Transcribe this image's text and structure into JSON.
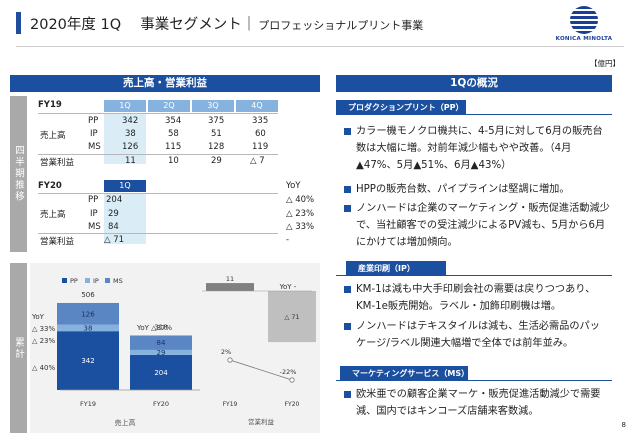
{
  "header": {
    "title": "2020年度 1Q　 事業セグメント｜",
    "subtitle": "プロフェッショナルプリント事業",
    "logo_text": "KONICA MINOLTA",
    "unit": "【億円】",
    "page_number": "8"
  },
  "left_panel": {
    "title": "売上高・営業利益",
    "vlabel_top": "四半期推移",
    "vlabel_bottom": "累計",
    "fy19": {
      "label": "FY19",
      "quarters": [
        "1Q",
        "2Q",
        "3Q",
        "4Q"
      ],
      "sales_label": "売上高",
      "rows": [
        {
          "seg": "PP",
          "values": [
            "342",
            "354",
            "375",
            "335"
          ]
        },
        {
          "seg": "IP",
          "values": [
            "38",
            "58",
            "51",
            "60"
          ]
        },
        {
          "seg": "MS",
          "values": [
            "126",
            "115",
            "128",
            "119"
          ]
        }
      ],
      "op_label": "営業利益",
      "op_values": [
        "11",
        "10",
        "29",
        "△ 7"
      ]
    },
    "fy20": {
      "label": "FY20",
      "quarter": "1Q",
      "yoy_label": "YoY",
      "sales_label": "売上高",
      "rows": [
        {
          "seg": "PP",
          "value": "204",
          "yoy": "△ 40%"
        },
        {
          "seg": "IP",
          "value": "29",
          "yoy": "△ 23%"
        },
        {
          "seg": "MS",
          "value": "84",
          "yoy": "△ 33%"
        }
      ],
      "op_label": "営業利益",
      "op_value": "△ 71",
      "op_yoy": "-"
    }
  },
  "chart_data": [
    {
      "type": "bar",
      "stacked": true,
      "categories": [
        "FY19",
        "FY20"
      ],
      "series": [
        {
          "name": "PP",
          "values": [
            342,
            204
          ],
          "color": "#1b4fa0"
        },
        {
          "name": "IP",
          "values": [
            38,
            29
          ],
          "color": "#86b2df"
        },
        {
          "name": "MS",
          "values": [
            126,
            84
          ],
          "color": "#5a86c4"
        }
      ],
      "totals": [
        506,
        318
      ],
      "xlabel": "売上高",
      "legend": "top",
      "yoy_fy19_label": "YoY",
      "yoy_fy19": [
        "△ 33%",
        "△ 23%",
        "△ 40%"
      ],
      "yoy_fy20": "YoY △37%"
    },
    {
      "type": "bar",
      "categories": [
        "FY19",
        "FY20"
      ],
      "values": [
        11,
        -71
      ],
      "margin_labels": [
        "2%",
        "-22%"
      ],
      "xlabel": "営業利益",
      "yoy_label": "YoY -",
      "bar_colors": [
        "#808080",
        "#bfbfbf"
      ]
    }
  ],
  "right_panel": {
    "title": "1Qの概況",
    "sections": [
      {
        "heading": "プロダクションプリント（PP）",
        "bullets": [
          "カラー機モノクロ機共に、4-5月に対して6月の販売台数は大幅に増。対前年減少幅もやや改善。（4月▲47%、5月▲51%、6月▲43%）",
          "HPPの販売台数、パイプラインは堅調に増加。",
          "ノンハードは企業のマーケティング・販売促進活動減少で、当社顧客での受注減少によるPV減も、5月から6月にかけては増加傾向。"
        ]
      },
      {
        "heading": "産業印刷（IP）",
        "bullets": [
          "KM-1は減も中大手印刷会社の需要は戻りつつあり、KM-1e販売開始。ラベル・加飾印刷機は増。",
          "ノンハードはテキスタイルは減も、生活必需品のパッケージ/ラベル関連大幅増で全体では前年並み。"
        ]
      },
      {
        "heading": "マーケティングサービス（MS）",
        "bullets": [
          "欧米亜での顧客企業マーケ・販売促進活動減少で需要減、国内ではキンコーズ店舗来客数減。"
        ]
      }
    ]
  }
}
